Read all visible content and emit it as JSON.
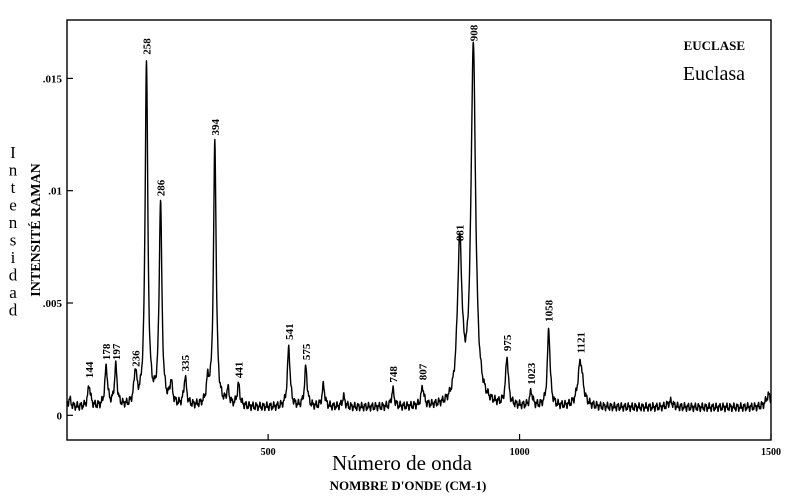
{
  "chart_data": {
    "type": "line",
    "title": "EUCLASE",
    "subtitle": "Euclasa",
    "xlabel": "Número de onda",
    "xlabel_secondary": "NOMBRE D'ONDE (CM-1)",
    "ylabel": "Intensidad",
    "ylabel_secondary": "INTENSITÉ RAMAN",
    "xlim": [
      100,
      1500
    ],
    "ylim": [
      -0.0011,
      0.0176
    ],
    "x_ticks": [
      500,
      1000,
      1500
    ],
    "y_ticks": [
      0,
      0.005,
      0.01,
      0.015
    ],
    "y_tick_labels": [
      "0",
      ".005",
      ".01",
      ".015"
    ],
    "grid": false,
    "legend": "none",
    "line_color": "#000000",
    "baseline": 0.00035,
    "peaks": [
      {
        "x": 144,
        "y": 0.0013,
        "label": "144"
      },
      {
        "x": 178,
        "y": 0.0021,
        "label": "178"
      },
      {
        "x": 197,
        "y": 0.0021,
        "label": "197"
      },
      {
        "x": 236,
        "y": 0.0018,
        "label": "236"
      },
      {
        "x": 258,
        "y": 0.0157,
        "label": "258"
      },
      {
        "x": 286,
        "y": 0.0094,
        "label": "286"
      },
      {
        "x": 335,
        "y": 0.0016,
        "label": "335"
      },
      {
        "x": 394,
        "y": 0.0121,
        "label": "394"
      },
      {
        "x": 441,
        "y": 0.0013,
        "label": "441"
      },
      {
        "x": 541,
        "y": 0.003,
        "label": "541"
      },
      {
        "x": 575,
        "y": 0.0021,
        "label": "575"
      },
      {
        "x": 748,
        "y": 0.0011,
        "label": "748"
      },
      {
        "x": 807,
        "y": 0.0012,
        "label": "807"
      },
      {
        "x": 881,
        "y": 0.0074,
        "label": "881"
      },
      {
        "x": 908,
        "y": 0.0163,
        "label": "908"
      },
      {
        "x": 975,
        "y": 0.0025,
        "label": "975"
      },
      {
        "x": 1023,
        "y": 0.001,
        "label": "1023"
      },
      {
        "x": 1058,
        "y": 0.0038,
        "label": "1058"
      },
      {
        "x": 1121,
        "y": 0.0024,
        "label": "1121"
      }
    ],
    "minor_peaks": [
      {
        "x": 105,
        "y": 0.0007
      },
      {
        "x": 307,
        "y": 0.0013
      },
      {
        "x": 380,
        "y": 0.0013
      },
      {
        "x": 420,
        "y": 0.001
      },
      {
        "x": 610,
        "y": 0.0013
      },
      {
        "x": 650,
        "y": 0.0008
      },
      {
        "x": 1300,
        "y": 0.0006
      },
      {
        "x": 1495,
        "y": 0.0009
      }
    ]
  }
}
